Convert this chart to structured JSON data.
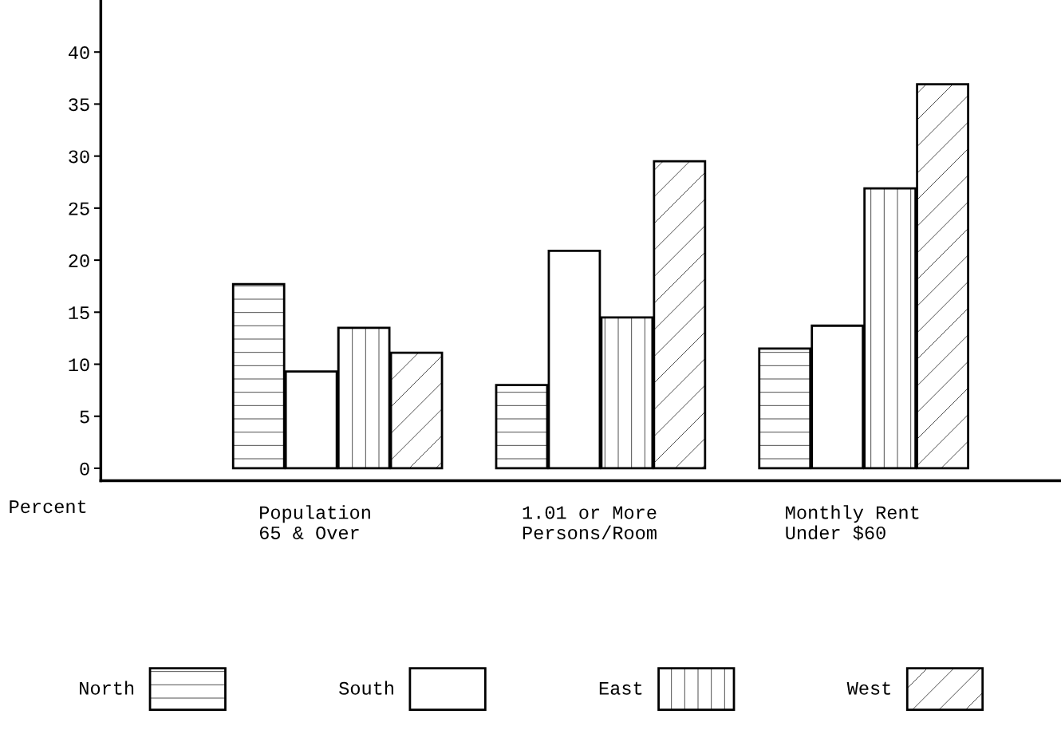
{
  "chart_data": {
    "type": "bar",
    "categories": [
      "Population\n65 & Over",
      "1.01 or More\nPersons/Room",
      "Monthly Rent\nUnder $60"
    ],
    "series": [
      {
        "name": "North",
        "color": "#ffffff",
        "values": [
          17.7,
          8.0,
          11.5
        ]
      },
      {
        "name": "South",
        "color": "#ffffff",
        "values": [
          9.3,
          20.9,
          13.7
        ]
      },
      {
        "name": "East",
        "color": "#ffffff",
        "values": [
          13.5,
          14.5,
          26.9
        ]
      },
      {
        "name": "West",
        "color": "#ffffff",
        "values": [
          11.1,
          29.5,
          36.9
        ]
      }
    ],
    "ylabel": "Percent",
    "ylim": [
      -1.2,
      45
    ],
    "yticks": [
      0,
      5,
      10,
      15,
      20,
      25,
      30,
      35,
      40
    ],
    "grid": false,
    "legend": "bottom"
  }
}
